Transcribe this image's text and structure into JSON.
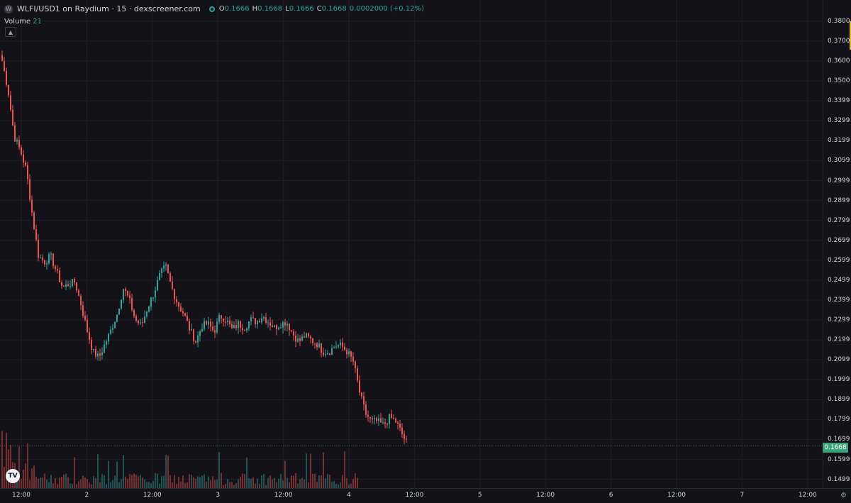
{
  "header": {
    "symbol_icon": "W",
    "title": "WLFI/USD1 on Raydium · 15 · dexscreener.com",
    "ohlc": {
      "o_label": "O",
      "o": "0.1666",
      "h_label": "H",
      "h": "0.1668",
      "l_label": "L",
      "l": "0.1666",
      "c_label": "C",
      "c": "0.1668",
      "change": "0.0002000 (+0.12%)"
    },
    "volume_label": "Volume",
    "volume_value": "21"
  },
  "colors": {
    "background": "#131219",
    "up": "#26a69a",
    "down": "#ef5350",
    "current_price_tag": "#3ba27a"
  },
  "price_axis": [
    "0.3800",
    "0.3700",
    "0.3600",
    "0.3500",
    "0.3399",
    "0.3299",
    "0.3199",
    "0.3099",
    "0.2999",
    "0.2899",
    "0.2799",
    "0.2699",
    "0.2599",
    "0.2499",
    "0.2399",
    "0.2299",
    "0.2199",
    "0.2099",
    "0.1999",
    "0.1899",
    "0.1799",
    "0.1699",
    "0.1599",
    "0.1499"
  ],
  "current_price": "0.1668",
  "time_axis": [
    "12:00",
    "2",
    "12:00",
    "3",
    "12:00",
    "4",
    "12:00",
    "5",
    "12:00",
    "6",
    "12:00",
    "7",
    "12:00"
  ],
  "icons": {
    "collapse": "chevron-up-icon",
    "logo": "tradingview-logo",
    "settings": "gear-icon"
  },
  "chart_data": {
    "type": "candlestick",
    "interval": "15",
    "ylim": [
      0.1455,
      0.3845
    ],
    "close_path": [
      [
        0,
        0.36
      ],
      [
        1,
        0.345
      ],
      [
        2,
        0.322
      ],
      [
        3,
        0.315
      ],
      [
        4,
        0.305
      ],
      [
        5,
        0.282
      ],
      [
        6,
        0.262
      ],
      [
        7,
        0.259
      ],
      [
        8,
        0.262
      ],
      [
        9,
        0.254
      ],
      [
        10,
        0.246
      ],
      [
        11,
        0.248
      ],
      [
        12,
        0.249
      ],
      [
        13,
        0.238
      ],
      [
        14,
        0.225
      ],
      [
        15,
        0.214
      ],
      [
        16,
        0.211
      ],
      [
        17,
        0.218
      ],
      [
        18,
        0.225
      ],
      [
        19,
        0.233
      ],
      [
        20,
        0.246
      ],
      [
        21,
        0.24
      ],
      [
        22,
        0.23
      ],
      [
        23,
        0.227
      ],
      [
        24,
        0.236
      ],
      [
        25,
        0.243
      ],
      [
        26,
        0.252
      ],
      [
        27,
        0.257
      ],
      [
        28,
        0.246
      ],
      [
        29,
        0.238
      ],
      [
        30,
        0.233
      ],
      [
        31,
        0.225
      ],
      [
        32,
        0.219
      ],
      [
        33,
        0.227
      ],
      [
        34,
        0.228
      ],
      [
        35,
        0.224
      ],
      [
        36,
        0.232
      ],
      [
        37,
        0.23
      ],
      [
        38,
        0.225
      ],
      [
        39,
        0.228
      ],
      [
        40,
        0.226
      ],
      [
        41,
        0.23
      ],
      [
        42,
        0.229
      ],
      [
        43,
        0.232
      ],
      [
        44,
        0.229
      ],
      [
        45,
        0.226
      ],
      [
        46,
        0.228
      ],
      [
        47,
        0.229
      ],
      [
        48,
        0.223
      ],
      [
        49,
        0.219
      ],
      [
        50,
        0.222
      ],
      [
        51,
        0.22
      ],
      [
        52,
        0.218
      ],
      [
        53,
        0.214
      ],
      [
        54,
        0.214
      ],
      [
        55,
        0.217
      ],
      [
        56,
        0.217
      ],
      [
        57,
        0.214
      ],
      [
        58,
        0.209
      ],
      [
        59,
        0.194
      ],
      [
        60,
        0.183
      ],
      [
        61,
        0.179
      ],
      [
        62,
        0.179
      ],
      [
        63,
        0.177
      ],
      [
        64,
        0.181
      ],
      [
        65,
        0.179
      ],
      [
        66,
        0.173
      ],
      [
        67,
        0.167
      ]
    ]
  }
}
